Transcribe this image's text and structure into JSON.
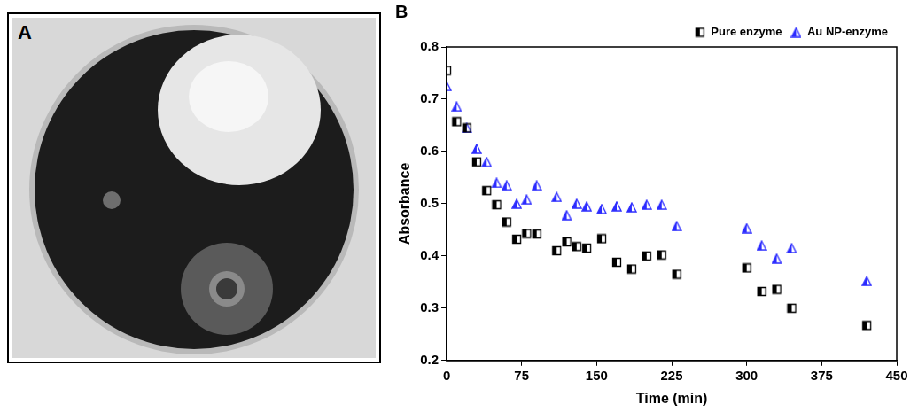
{
  "photo_panel": {
    "label": "A"
  },
  "chart_data": {
    "type": "scatter",
    "panel_label": "B",
    "x_label": "Time (min)",
    "y_label": "Absorbance",
    "xlim": [
      0,
      450
    ],
    "xticks": [
      0,
      75,
      150,
      225,
      300,
      375,
      450
    ],
    "ylim": [
      0.2,
      0.8
    ],
    "yticks": [
      0.2,
      0.3,
      0.4,
      0.5,
      0.6,
      0.7,
      0.8
    ],
    "grid": false,
    "legend": "top right",
    "series": [
      {
        "name": "Pure enzyme",
        "color": "#000000",
        "marker": "half_filled_square",
        "x": [
          0,
          10,
          20,
          30,
          40,
          50,
          60,
          70,
          80,
          90,
          110,
          120,
          130,
          140,
          155,
          170,
          185,
          200,
          215,
          230,
          300,
          315,
          330,
          345,
          420
        ],
        "values": [
          0.755,
          0.657,
          0.645,
          0.58,
          0.525,
          0.498,
          0.465,
          0.432,
          0.443,
          0.442,
          0.41,
          0.427,
          0.418,
          0.415,
          0.433,
          0.388,
          0.375,
          0.4,
          0.402,
          0.365,
          0.377,
          0.332,
          0.336,
          0.3,
          0.267
        ]
      },
      {
        "name": "Au NP-enzyme",
        "color": "#2b2bff",
        "marker": "half_filled_triangle",
        "x": [
          0,
          10,
          20,
          30,
          40,
          50,
          60,
          70,
          80,
          90,
          110,
          120,
          130,
          140,
          155,
          170,
          185,
          200,
          215,
          230,
          300,
          315,
          330,
          345,
          420
        ],
        "values": [
          0.725,
          0.686,
          0.645,
          0.605,
          0.58,
          0.54,
          0.535,
          0.5,
          0.508,
          0.535,
          0.513,
          0.478,
          0.5,
          0.495,
          0.49,
          0.495,
          0.493,
          0.498,
          0.498,
          0.457,
          0.453,
          0.42,
          0.395,
          0.415,
          0.352
        ]
      }
    ]
  }
}
